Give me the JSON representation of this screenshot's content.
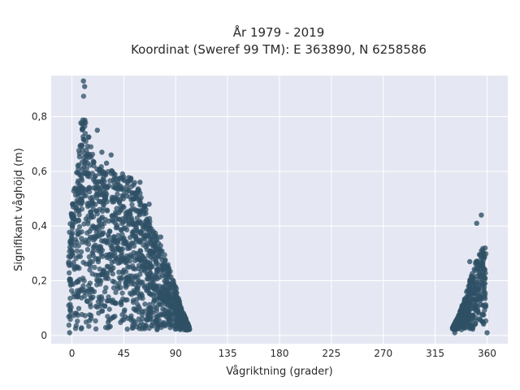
{
  "chart_data": {
    "type": "scatter",
    "title_lines": [
      "År 1979 - 2019",
      "Koordinat (Sweref 99 TM): E 363890, N 6258586"
    ],
    "xlabel": "Vågriktning (grader)",
    "ylabel": "Signifikant våghöjd (m)",
    "xlim": [
      -18,
      378
    ],
    "ylim": [
      -0.03,
      0.95
    ],
    "xticks": [
      0,
      45,
      90,
      135,
      180,
      225,
      270,
      315,
      360
    ],
    "xtick_labels": [
      "0",
      "45",
      "90",
      "135",
      "180",
      "225",
      "270",
      "315",
      "360"
    ],
    "yticks": [
      0,
      0.2,
      0.4,
      0.6,
      0.8
    ],
    "ytick_labels": [
      "0",
      "0,2",
      "0,4",
      "0,6",
      "0,8"
    ],
    "grid": true,
    "marker_color": "#2f5066",
    "plot_bg": "#e5e8f2",
    "envelope": [
      [
        -3,
        0.47
      ],
      [
        0,
        0.5
      ],
      [
        3,
        0.56
      ],
      [
        5,
        0.66
      ],
      [
        7,
        0.76
      ],
      [
        9,
        0.84
      ],
      [
        10,
        0.89
      ],
      [
        11,
        0.88
      ],
      [
        12,
        0.82
      ],
      [
        14,
        0.74
      ],
      [
        16,
        0.7
      ],
      [
        20,
        0.63
      ],
      [
        25,
        0.62
      ],
      [
        30,
        0.61
      ],
      [
        35,
        0.61
      ],
      [
        40,
        0.6
      ],
      [
        45,
        0.59
      ],
      [
        50,
        0.58
      ],
      [
        55,
        0.56
      ],
      [
        60,
        0.53
      ],
      [
        65,
        0.45
      ],
      [
        70,
        0.4
      ],
      [
        75,
        0.35
      ],
      [
        80,
        0.3
      ],
      [
        85,
        0.24
      ],
      [
        90,
        0.18
      ],
      [
        95,
        0.1
      ],
      [
        100,
        0.05
      ],
      [
        102,
        0.03
      ],
      [
        330,
        0.03
      ],
      [
        335,
        0.07
      ],
      [
        340,
        0.13
      ],
      [
        345,
        0.2
      ],
      [
        350,
        0.27
      ],
      [
        355,
        0.31
      ],
      [
        358,
        0.33
      ],
      [
        359,
        0.35
      ]
    ],
    "outliers": [
      [
        10,
        0.93
      ],
      [
        11,
        0.91
      ],
      [
        22,
        0.75
      ],
      [
        26,
        0.67
      ],
      [
        34,
        0.66
      ],
      [
        30,
        0.63
      ],
      [
        35,
        0.6
      ],
      [
        59,
        0.56
      ],
      [
        67,
        0.48
      ],
      [
        77,
        0.36
      ],
      [
        355,
        0.44
      ],
      [
        351,
        0.41
      ],
      [
        345,
        0.27
      ],
      [
        101,
        0.03
      ],
      [
        99,
        0.04
      ],
      [
        -2,
        0.01
      ],
      [
        332,
        0.01
      ],
      [
        360,
        0.01
      ]
    ]
  }
}
